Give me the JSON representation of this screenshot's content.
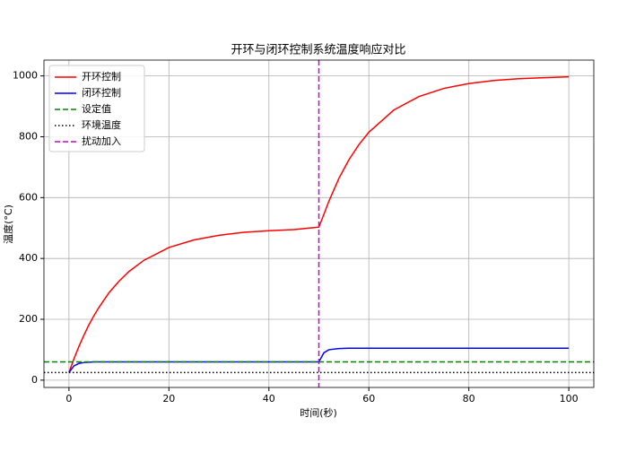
{
  "chart_data": {
    "type": "line",
    "title": "开环与闭环控制系统温度响应对比",
    "x_label": "时间(秒)",
    "y_label": "温度(°C)",
    "x": [
      0,
      1,
      2,
      3,
      4,
      5,
      6,
      8,
      10,
      12,
      15,
      20,
      25,
      30,
      35,
      40,
      45,
      50,
      51,
      52,
      54,
      56,
      58,
      60,
      65,
      70,
      75,
      80,
      85,
      90,
      95,
      100
    ],
    "series": [
      {
        "name": "开环控制",
        "color": "#ff0000",
        "values": [
          25,
          70,
          111,
          148,
          182,
          212,
          239,
          287,
          325,
          357,
          394,
          436,
          461,
          476,
          486,
          491,
          495,
          503,
          545,
          588,
          663,
          724,
          774,
          815,
          888,
          932,
          959,
          975,
          985,
          991,
          994,
          997
        ]
      },
      {
        "name": "闭环控制",
        "color": "#0000ff",
        "values": [
          25,
          47,
          55,
          58,
          59,
          60,
          60,
          60,
          60,
          60,
          60,
          60,
          60,
          60,
          60,
          60,
          60,
          60,
          90,
          100,
          104,
          105,
          105,
          105,
          105,
          105,
          105,
          105,
          105,
          105,
          105,
          105
        ]
      }
    ],
    "hlines": [
      {
        "name": "设定值",
        "color": "#008000",
        "value": 60,
        "style": "dashed"
      },
      {
        "name": "环境温度",
        "color": "#000000",
        "value": 25,
        "style": "dotted"
      }
    ],
    "vlines": [
      {
        "name": "扰动加入",
        "color": "#cc00cc",
        "value": 50,
        "style": "dashed"
      }
    ],
    "xlim": [
      -5,
      105
    ],
    "ylim": [
      -24,
      1052
    ],
    "xticks": [
      0,
      20,
      40,
      60,
      80,
      100
    ],
    "yticks": [
      0,
      200,
      400,
      600,
      800,
      1000
    ],
    "grid": true,
    "legend": "upper-left"
  }
}
